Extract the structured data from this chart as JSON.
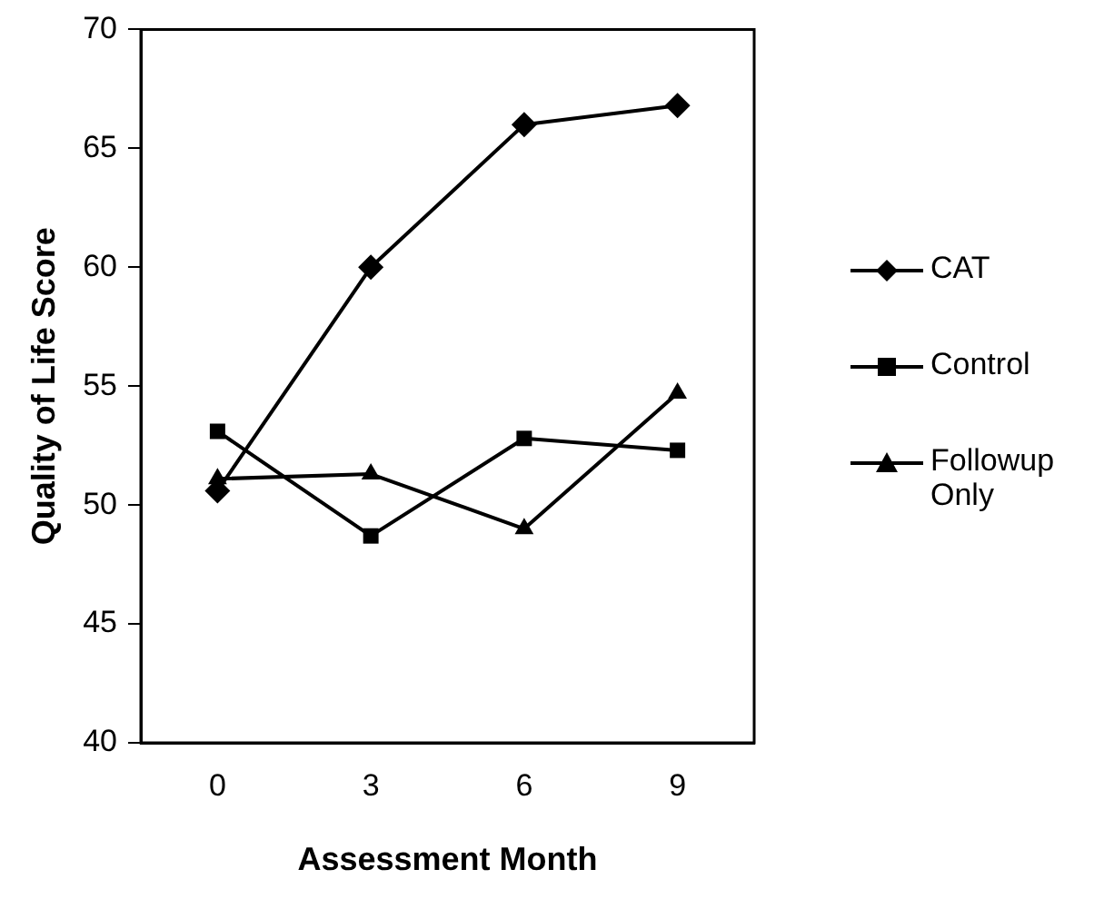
{
  "chart_data": {
    "type": "line",
    "xlabel": "Assessment Month",
    "ylabel": "Quality of Life Score",
    "categories": [
      "0",
      "3",
      "6",
      "9"
    ],
    "ylim": [
      40,
      70
    ],
    "yticks": [
      40,
      45,
      50,
      55,
      60,
      65,
      70
    ],
    "grid": false,
    "legend": "right",
    "line_style": "solid",
    "series": [
      {
        "name": "CAT",
        "color": "#000000",
        "marker": "diamond",
        "values": [
          50.6,
          60,
          66,
          66.8
        ]
      },
      {
        "name": "Control",
        "color": "#000000",
        "marker": "square",
        "values": [
          53.1,
          48.7,
          52.8,
          52.3
        ]
      },
      {
        "name": "Followup Only",
        "color": "#000000",
        "marker": "triangle",
        "values": [
          51.1,
          51.3,
          49,
          54.7
        ]
      }
    ]
  }
}
